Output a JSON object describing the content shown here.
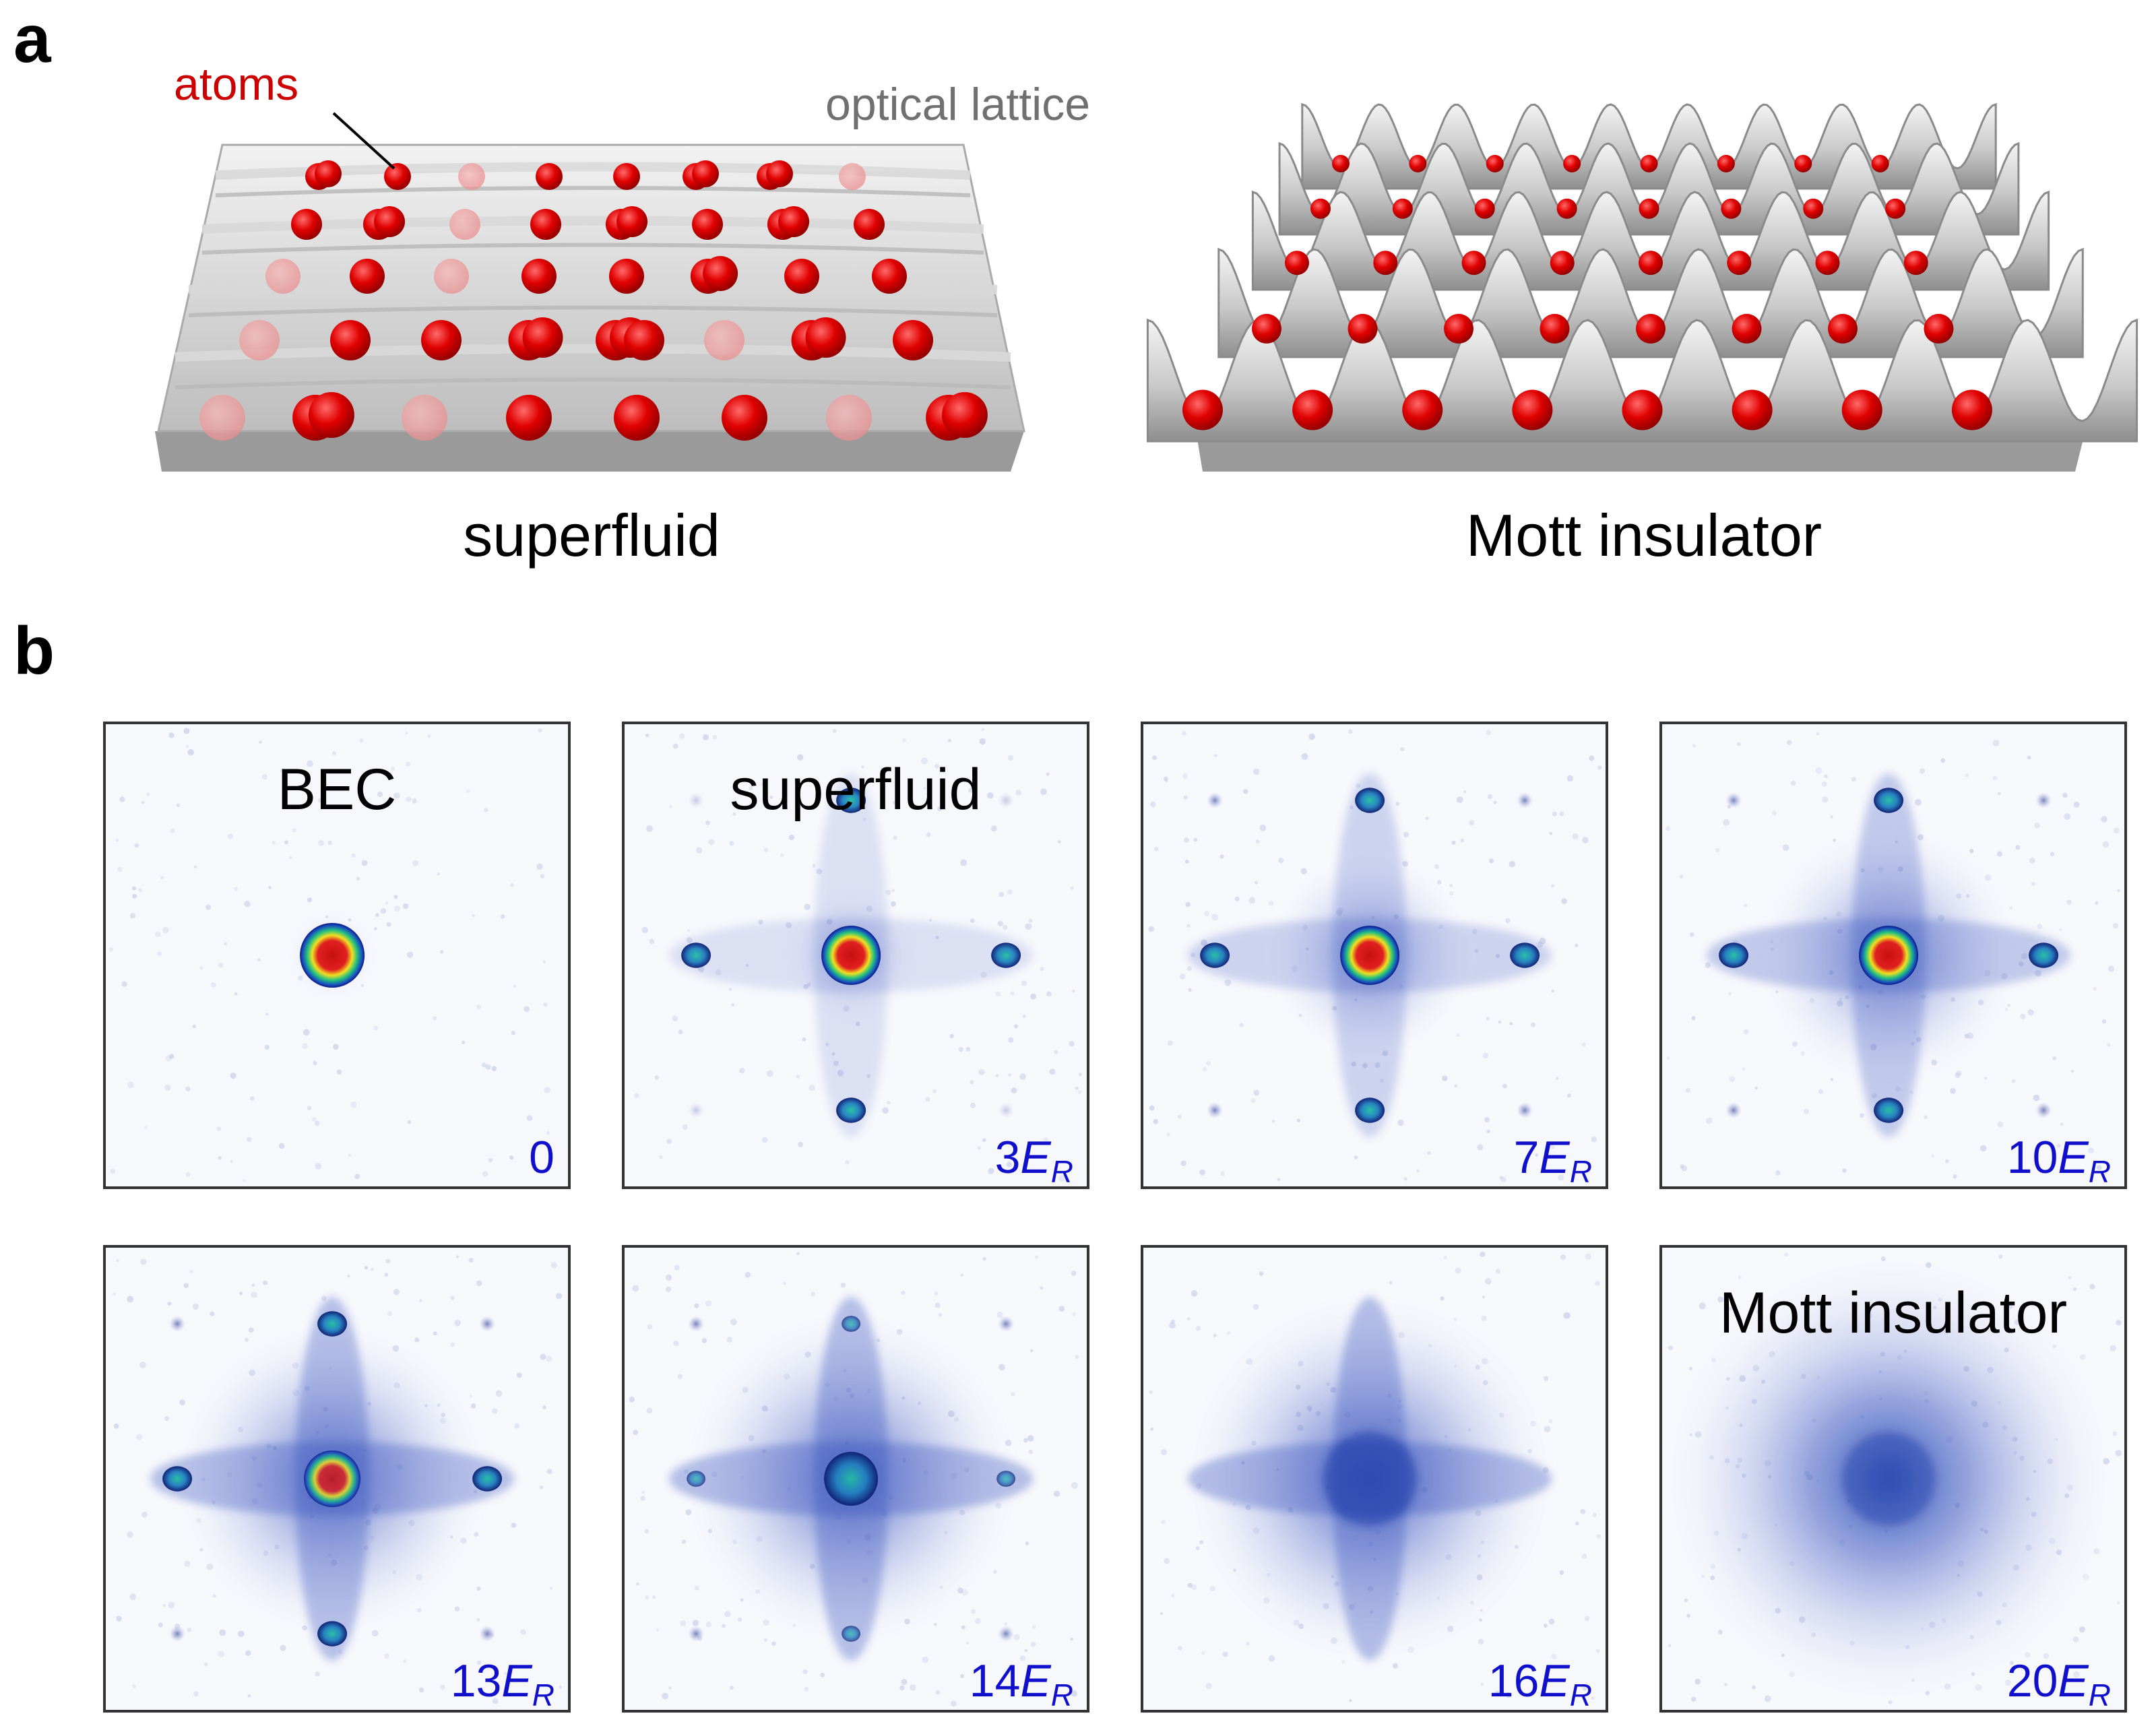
{
  "figure": {
    "panel_a": {
      "label": "a",
      "atoms_label": "atoms",
      "lattice_label": "optical lattice",
      "left_caption": "superfluid",
      "right_caption": "Mott insulator",
      "atom_color": "#e00000",
      "label_atoms_color": "#cc0000",
      "label_lattice_color": "#707070"
    },
    "panel_b": {
      "label": "b",
      "value_color": "#1010cc",
      "images": [
        {
          "title": "BEC",
          "value": "0",
          "energy": false,
          "depth_er": 0
        },
        {
          "title": "superfluid",
          "value": "3",
          "energy": true,
          "depth_er": 3
        },
        {
          "title": "",
          "value": "7",
          "energy": true,
          "depth_er": 7
        },
        {
          "title": "",
          "value": "10",
          "energy": true,
          "depth_er": 10
        },
        {
          "title": "",
          "value": "13",
          "energy": true,
          "depth_er": 13
        },
        {
          "title": "",
          "value": "14",
          "energy": true,
          "depth_er": 14
        },
        {
          "title": "",
          "value": "16",
          "energy": true,
          "depth_er": 16
        },
        {
          "title": "Mott insulator",
          "value": "20",
          "energy": true,
          "depth_er": 20
        }
      ],
      "energy_symbol": "E",
      "energy_subscript": "R"
    }
  }
}
